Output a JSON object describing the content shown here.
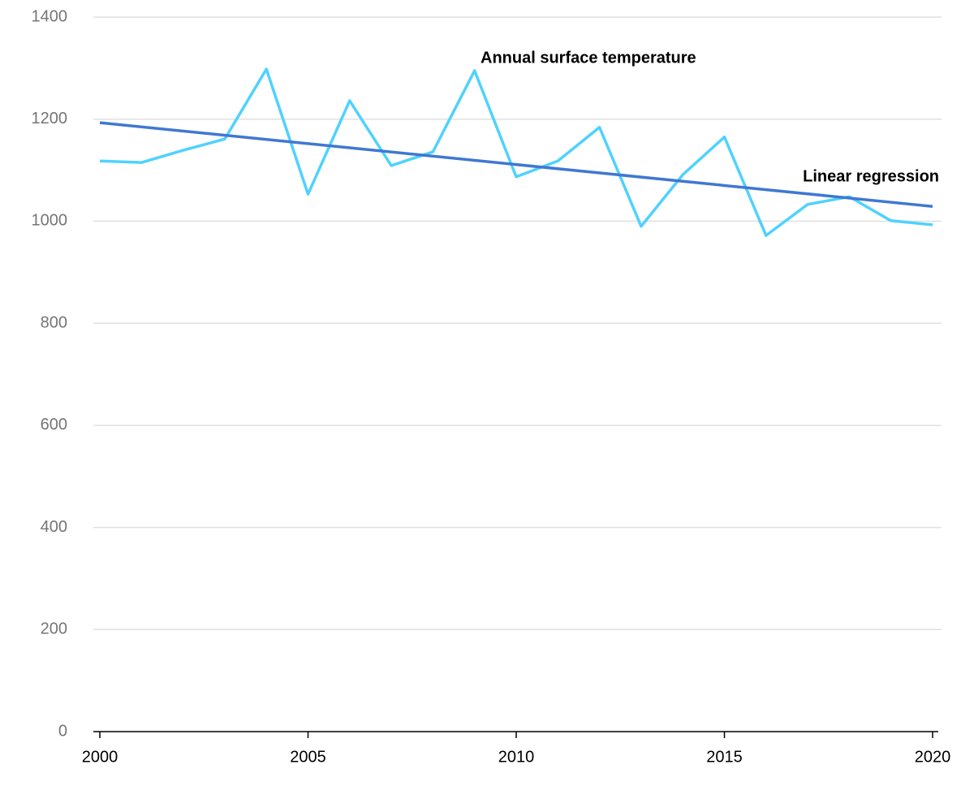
{
  "chart_data": {
    "type": "line",
    "x": [
      2000,
      2001,
      2002,
      2003,
      2004,
      2005,
      2006,
      2007,
      2008,
      2009,
      2010,
      2011,
      2012,
      2013,
      2014,
      2015,
      2016,
      2017,
      2018,
      2019,
      2020
    ],
    "series": [
      {
        "name": "Annual surface temperature",
        "color": "#4fd2ff",
        "values": [
          1118,
          1115,
          1139,
          1161,
          1298,
          1053,
          1236,
          1109,
          1136,
          1295,
          1087,
          1118,
          1184,
          990,
          1091,
          1165,
          972,
          1033,
          1048,
          1001,
          993
        ]
      },
      {
        "name": "Linear regression",
        "color": "#3f78d1",
        "x": [
          2000,
          2020
        ],
        "values": [
          1193,
          1029
        ]
      }
    ],
    "xlim": [
      2000,
      2020
    ],
    "xticks": [
      2000,
      2005,
      2010,
      2015,
      2020
    ],
    "ylim": [
      0,
      1400
    ],
    "yticks": [
      0,
      200,
      400,
      600,
      800,
      1000,
      1200,
      1400
    ],
    "grid": true
  }
}
